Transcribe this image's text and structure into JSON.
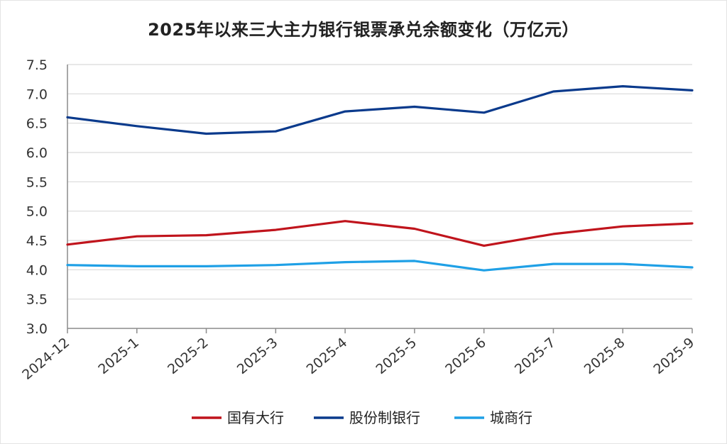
{
  "chart_data": {
    "type": "line",
    "title": "2025年以来三大主力银行银票承兑余额变化（万亿元）",
    "xlabel": "",
    "ylabel": "",
    "categories": [
      "2024-12",
      "2025-1",
      "2025-2",
      "2025-3",
      "2025-4",
      "2025-5",
      "2025-6",
      "2025-7",
      "2025-8",
      "2025-9"
    ],
    "ylim": [
      3.0,
      7.5
    ],
    "yticks": [
      "3.0",
      "3.5",
      "4.0",
      "4.5",
      "5.0",
      "5.5",
      "6.0",
      "6.5",
      "7.0",
      "7.5"
    ],
    "grid": true,
    "legend_position": "bottom",
    "series": [
      {
        "name": "国有大行",
        "color": "#c0141c",
        "values": [
          4.43,
          4.57,
          4.59,
          4.68,
          4.83,
          4.7,
          4.41,
          4.61,
          4.74,
          4.79
        ]
      },
      {
        "name": "股份制银行",
        "color": "#0a3a8c",
        "values": [
          6.6,
          6.45,
          6.32,
          6.36,
          6.7,
          6.78,
          6.68,
          7.04,
          7.13,
          7.06
        ]
      },
      {
        "name": "城商行",
        "color": "#1fa0e6",
        "values": [
          4.08,
          4.06,
          4.06,
          4.08,
          4.13,
          4.15,
          3.99,
          4.1,
          4.1,
          4.04
        ]
      }
    ]
  }
}
